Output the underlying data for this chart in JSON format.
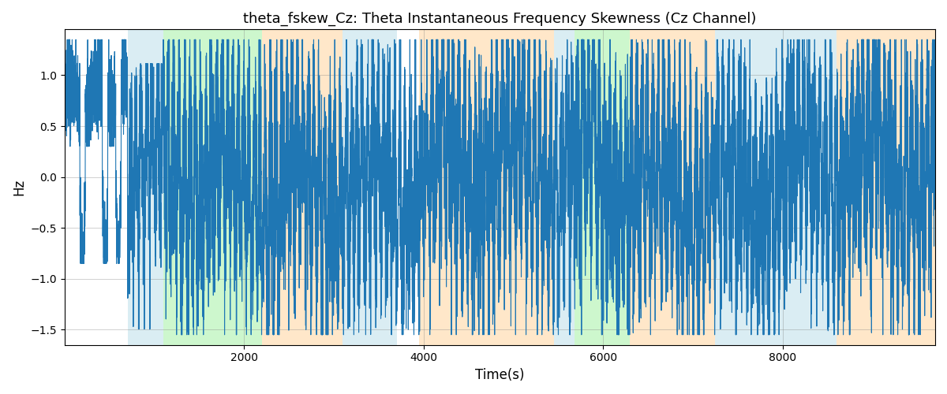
{
  "title": "theta_fskew_Cz: Theta Instantaneous Frequency Skewness (Cz Channel)",
  "xlabel": "Time(s)",
  "ylabel": "Hz",
  "line_color": "#1f77b4",
  "line_width": 0.8,
  "ylim": [
    -1.65,
    1.45
  ],
  "xlim": [
    0,
    9700
  ],
  "bg_bands": [
    {
      "xmin": 700,
      "xmax": 1100,
      "color": "#add8e6",
      "alpha": 0.45
    },
    {
      "xmin": 1100,
      "xmax": 2200,
      "color": "#90ee90",
      "alpha": 0.45
    },
    {
      "xmin": 2200,
      "xmax": 3100,
      "color": "#ffd59e",
      "alpha": 0.55
    },
    {
      "xmin": 3100,
      "xmax": 3700,
      "color": "#add8e6",
      "alpha": 0.45
    },
    {
      "xmin": 3950,
      "xmax": 5450,
      "color": "#ffd59e",
      "alpha": 0.55
    },
    {
      "xmin": 5450,
      "xmax": 5680,
      "color": "#add8e6",
      "alpha": 0.45
    },
    {
      "xmin": 5680,
      "xmax": 6300,
      "color": "#90ee90",
      "alpha": 0.45
    },
    {
      "xmin": 6300,
      "xmax": 7250,
      "color": "#ffd59e",
      "alpha": 0.55
    },
    {
      "xmin": 7250,
      "xmax": 8600,
      "color": "#add8e6",
      "alpha": 0.45
    },
    {
      "xmin": 8600,
      "xmax": 9700,
      "color": "#ffd59e",
      "alpha": 0.55
    }
  ],
  "xticks": [
    2000,
    4000,
    6000,
    8000
  ],
  "yticks": [
    -1.5,
    -1.0,
    -0.5,
    0.0,
    0.5,
    1.0
  ],
  "figsize": [
    12.0,
    5.0
  ],
  "dpi": 100,
  "seed": 42,
  "n_points": 9700
}
